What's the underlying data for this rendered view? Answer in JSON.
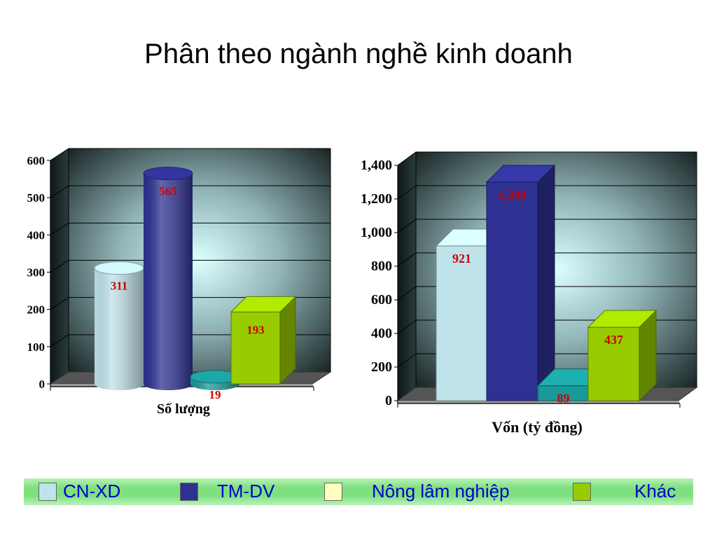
{
  "title": "Phân theo ngành nghề kinh doanh",
  "colors": {
    "cn_xd": "#bfe3ea",
    "tm_dv": "#2e3192",
    "nong_lam": "#ffffc0",
    "khac": "#99cc00",
    "teal": "#1a9999",
    "data_label": "#cc0000",
    "legend_text": "#0000cc"
  },
  "legend": {
    "items": [
      {
        "label": "CN-XD",
        "color": "#bfe3ea"
      },
      {
        "label": "TM-DV",
        "color": "#2e3192"
      },
      {
        "label": "Nông lâm nghiệp",
        "color": "#ffffc0"
      },
      {
        "label": "Khác",
        "color": "#99cc00"
      }
    ]
  },
  "chart_data": [
    {
      "type": "bar",
      "title": "",
      "xlabel": "Số lượng",
      "ylabel": "",
      "ylim": [
        0,
        600
      ],
      "yticks": [
        "0",
        "100",
        "200",
        "300",
        "400",
        "500",
        "600"
      ],
      "grid": true,
      "shape": "3d-cylinder-and-box",
      "bars": [
        {
          "category": "CN-XD",
          "value": 311,
          "label": "311",
          "shape": "cylinder",
          "color": "#bfe3ea"
        },
        {
          "category": "TM-DV",
          "value": 565,
          "label": "565",
          "shape": "cylinder",
          "color": "#2e3192"
        },
        {
          "category": "Nông lâm nghiệp",
          "value": 19,
          "label": "19",
          "shape": "cylinder",
          "color": "#1a9999"
        },
        {
          "category": "Khác",
          "value": 193,
          "label": "193",
          "shape": "box",
          "color": "#99cc00"
        }
      ]
    },
    {
      "type": "bar",
      "title": "",
      "xlabel": "Vốn (tỷ đồng)",
      "ylabel": "",
      "ylim": [
        0,
        1400
      ],
      "yticks": [
        "0",
        "200",
        "400",
        "600",
        "800",
        "1,000",
        "1,200",
        "1,400"
      ],
      "grid": true,
      "shape": "3d-box",
      "bars": [
        {
          "category": "CN-XD",
          "value": 921,
          "label": "921",
          "shape": "box",
          "color": "#bfe3ea"
        },
        {
          "category": "TM-DV",
          "value": 1300,
          "label": "1,300",
          "shape": "box",
          "color": "#2e3192"
        },
        {
          "category": "Nông lâm nghiệp",
          "value": 89,
          "label": "89",
          "shape": "box",
          "color": "#1a9999"
        },
        {
          "category": "Khác",
          "value": 437,
          "label": "437",
          "shape": "box",
          "color": "#99cc00"
        }
      ]
    }
  ]
}
